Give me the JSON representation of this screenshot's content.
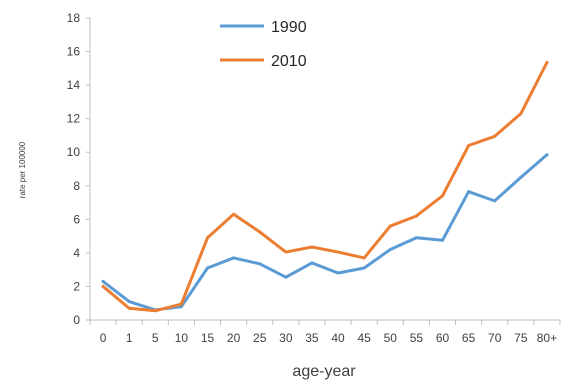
{
  "chart_data": {
    "type": "line",
    "title": "",
    "xlabel": "age-year",
    "ylabel": "rate per 100000",
    "categories": [
      "0",
      "1",
      "5",
      "10",
      "15",
      "20",
      "25",
      "30",
      "35",
      "40",
      "45",
      "50",
      "55",
      "60",
      "65",
      "70",
      "75",
      "80+"
    ],
    "ylim": [
      0,
      18
    ],
    "yticks": [
      0,
      2,
      4,
      6,
      8,
      10,
      12,
      14,
      16,
      18
    ],
    "grid": false,
    "legend_position": "top-center",
    "series": [
      {
        "name": "1990",
        "color": "#5b9bd5",
        "values": [
          2.3,
          1.1,
          0.6,
          0.8,
          3.1,
          3.7,
          3.35,
          2.55,
          3.4,
          2.8,
          3.1,
          4.2,
          4.9,
          4.75,
          7.65,
          7.1,
          8.5,
          9.85
        ]
      },
      {
        "name": "2010",
        "color": "#ed7d31",
        "values": [
          2.0,
          0.7,
          0.55,
          0.95,
          4.9,
          6.3,
          5.25,
          4.05,
          4.35,
          4.05,
          3.7,
          5.6,
          6.2,
          7.4,
          10.4,
          10.95,
          12.3,
          15.35
        ]
      }
    ]
  }
}
